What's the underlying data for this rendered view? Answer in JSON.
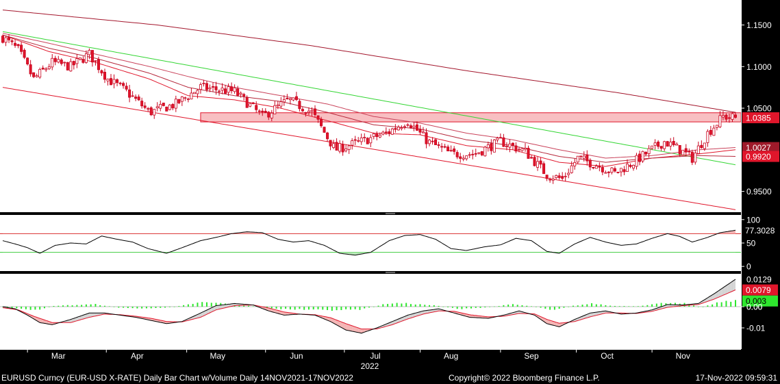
{
  "chart_data": [
    {
      "type": "candlestick",
      "panel": "price",
      "ylim": [
        0.925,
        1.18
      ],
      "yticks": [
        "1.1500",
        "1.1000",
        "1.0500",
        "0.9500"
      ],
      "yticks_values": [
        1.15,
        1.1,
        1.05,
        0.95
      ],
      "price_labels": [
        {
          "text": "1.0385",
          "value": 1.0385,
          "color": "#e0162b"
        },
        {
          "text": "1.0027",
          "value": 1.0027,
          "color": "#9e1a2a"
        },
        {
          "text": "0.9920",
          "value": 0.992,
          "color": "#e0162b"
        }
      ],
      "resistance_band": [
        1.0335,
        1.0445
      ],
      "candles_start": "2022-02-01",
      "close_anchors": [
        [
          0,
          1.135
        ],
        [
          10,
          1.12
        ],
        [
          20,
          1.085
        ],
        [
          32,
          1.105
        ],
        [
          44,
          1.1
        ],
        [
          56,
          1.115
        ],
        [
          68,
          1.085
        ],
        [
          80,
          1.07
        ],
        [
          95,
          1.045
        ],
        [
          112,
          1.055
        ],
        [
          128,
          1.075
        ],
        [
          150,
          1.07
        ],
        [
          168,
          1.04
        ],
        [
          185,
          1.06
        ],
        [
          200,
          1.045
        ],
        [
          215,
          1.0
        ],
        [
          232,
          1.01
        ],
        [
          248,
          1.02
        ],
        [
          262,
          1.035
        ],
        [
          275,
          1.01
        ],
        [
          290,
          0.995
        ],
        [
          305,
          0.995
        ],
        [
          322,
          1.01
        ],
        [
          338,
          0.998
        ],
        [
          352,
          0.97
        ],
        [
          362,
          0.965
        ],
        [
          372,
          0.99
        ],
        [
          384,
          0.982
        ],
        [
          396,
          0.972
        ],
        [
          408,
          0.985
        ],
        [
          418,
          0.998
        ],
        [
          428,
          1.01
        ],
        [
          438,
          1.0
        ],
        [
          446,
          0.99
        ],
        [
          456,
          1.02
        ],
        [
          466,
          1.04
        ],
        [
          474,
          1.0385
        ]
      ],
      "lines": [
        {
          "name": "upper-maroon",
          "color": "#a3162c",
          "points": [
            [
              0,
              1.168
            ],
            [
              100,
              1.15
            ],
            [
              200,
              1.125
            ],
            [
              300,
              1.095
            ],
            [
              400,
              1.068
            ],
            [
              474,
              1.045
            ]
          ]
        },
        {
          "name": "green-trendline",
          "color": "#33d633",
          "points": [
            [
              0,
              1.142
            ],
            [
              474,
              0.982
            ]
          ]
        },
        {
          "name": "lower-channel",
          "color": "#e0162b",
          "points": [
            [
              0,
              1.075
            ],
            [
              474,
              0.928
            ]
          ]
        },
        {
          "name": "ma-fast",
          "color": "#e0162b",
          "points": [
            [
              0,
              1.138
            ],
            [
              30,
              1.118
            ],
            [
              60,
              1.105
            ],
            [
              95,
              1.085
            ],
            [
              120,
              1.065
            ],
            [
              150,
              1.06
            ],
            [
              180,
              1.05
            ],
            [
              210,
              1.035
            ],
            [
              240,
              1.02
            ],
            [
              270,
              1.018
            ],
            [
              300,
              1.005
            ],
            [
              330,
              1.0
            ],
            [
              360,
              0.985
            ],
            [
              390,
              0.98
            ],
            [
              420,
              0.99
            ],
            [
              450,
              0.995
            ],
            [
              474,
              1.0
            ]
          ]
        },
        {
          "name": "ma-mid",
          "color": "#b5283b",
          "points": [
            [
              0,
              1.138
            ],
            [
              30,
              1.122
            ],
            [
              60,
              1.11
            ],
            [
              95,
              1.092
            ],
            [
              120,
              1.075
            ],
            [
              150,
              1.065
            ],
            [
              180,
              1.058
            ],
            [
              210,
              1.045
            ],
            [
              240,
              1.03
            ],
            [
              270,
              1.025
            ],
            [
              300,
              1.012
            ],
            [
              330,
              1.005
            ],
            [
              360,
              0.992
            ],
            [
              390,
              0.985
            ],
            [
              420,
              0.99
            ],
            [
              450,
              0.993
            ],
            [
              474,
              0.992
            ]
          ]
        },
        {
          "name": "ma-slow",
          "color": "#c9425a",
          "points": [
            [
              0,
              1.14
            ],
            [
              30,
              1.128
            ],
            [
              60,
              1.115
            ],
            [
              95,
              1.1
            ],
            [
              120,
              1.088
            ],
            [
              150,
              1.075
            ],
            [
              180,
              1.065
            ],
            [
              210,
              1.055
            ],
            [
              240,
              1.04
            ],
            [
              270,
              1.032
            ],
            [
              300,
              1.02
            ],
            [
              330,
              1.012
            ],
            [
              360,
              1.0
            ],
            [
              390,
              0.99
            ],
            [
              420,
              0.993
            ],
            [
              450,
              1.0
            ],
            [
              474,
              1.0027
            ]
          ]
        }
      ]
    },
    {
      "type": "line",
      "panel": "rsi",
      "ylim": [
        -10,
        110
      ],
      "yticks": [
        "100",
        "50",
        "0"
      ],
      "yticks_values": [
        100,
        50,
        0
      ],
      "value_label": {
        "text": "77.3028",
        "value": 77.3028
      },
      "overbought": 70,
      "oversold": 30,
      "series": [
        [
          0,
          55
        ],
        [
          8,
          48
        ],
        [
          16,
          40
        ],
        [
          24,
          28
        ],
        [
          34,
          45
        ],
        [
          44,
          50
        ],
        [
          54,
          48
        ],
        [
          64,
          65
        ],
        [
          74,
          58
        ],
        [
          84,
          52
        ],
        [
          94,
          38
        ],
        [
          106,
          28
        ],
        [
          116,
          40
        ],
        [
          128,
          55
        ],
        [
          138,
          62
        ],
        [
          148,
          70
        ],
        [
          158,
          74
        ],
        [
          168,
          72
        ],
        [
          178,
          58
        ],
        [
          188,
          52
        ],
        [
          198,
          55
        ],
        [
          208,
          45
        ],
        [
          218,
          28
        ],
        [
          228,
          24
        ],
        [
          238,
          30
        ],
        [
          250,
          55
        ],
        [
          260,
          66
        ],
        [
          270,
          68
        ],
        [
          280,
          58
        ],
        [
          290,
          38
        ],
        [
          300,
          34
        ],
        [
          312,
          42
        ],
        [
          322,
          46
        ],
        [
          332,
          60
        ],
        [
          342,
          55
        ],
        [
          352,
          32
        ],
        [
          360,
          28
        ],
        [
          370,
          48
        ],
        [
          380,
          62
        ],
        [
          390,
          52
        ],
        [
          400,
          45
        ],
        [
          410,
          48
        ],
        [
          420,
          60
        ],
        [
          430,
          70
        ],
        [
          438,
          64
        ],
        [
          446,
          52
        ],
        [
          456,
          62
        ],
        [
          464,
          72
        ],
        [
          474,
          77.3
        ]
      ]
    },
    {
      "type": "macd",
      "panel": "macd",
      "ylim": [
        -0.02,
        0.0155
      ],
      "yticks": [
        "0.0129",
        "0.0079",
        "0.003",
        "0.00",
        "-0.01"
      ],
      "yticks_values": [
        0.0129,
        0.0079,
        0.003,
        0.0,
        -0.01
      ],
      "macd_label": {
        "text": "0.0129",
        "value": 0.0129
      },
      "signal_label": {
        "text": "0.0079",
        "value": 0.0079
      },
      "histogram_label": {
        "text": "0.003",
        "value": 0.003
      },
      "macd": [
        [
          0,
          0.0
        ],
        [
          8,
          -0.001
        ],
        [
          16,
          -0.004
        ],
        [
          24,
          -0.0075
        ],
        [
          32,
          -0.0085
        ],
        [
          44,
          -0.006
        ],
        [
          56,
          -0.003
        ],
        [
          66,
          -0.003
        ],
        [
          76,
          -0.004
        ],
        [
          86,
          -0.005
        ],
        [
          96,
          -0.0065
        ],
        [
          106,
          -0.008
        ],
        [
          116,
          -0.007
        ],
        [
          128,
          -0.003
        ],
        [
          138,
          0.0005
        ],
        [
          150,
          0.0015
        ],
        [
          162,
          0.0008
        ],
        [
          172,
          -0.002
        ],
        [
          182,
          -0.004
        ],
        [
          192,
          -0.0035
        ],
        [
          202,
          -0.004
        ],
        [
          212,
          -0.007
        ],
        [
          222,
          -0.011
        ],
        [
          232,
          -0.0125
        ],
        [
          242,
          -0.01
        ],
        [
          252,
          -0.007
        ],
        [
          262,
          -0.004
        ],
        [
          272,
          -0.002
        ],
        [
          282,
          -0.001
        ],
        [
          292,
          -0.003
        ],
        [
          302,
          -0.005
        ],
        [
          314,
          -0.0055
        ],
        [
          324,
          -0.004
        ],
        [
          334,
          -0.002
        ],
        [
          344,
          -0.004
        ],
        [
          352,
          -0.008
        ],
        [
          360,
          -0.0095
        ],
        [
          370,
          -0.006
        ],
        [
          380,
          -0.003
        ],
        [
          390,
          -0.002
        ],
        [
          400,
          -0.0035
        ],
        [
          410,
          -0.003
        ],
        [
          420,
          -0.0015
        ],
        [
          430,
          0.001
        ],
        [
          440,
          0.0008
        ],
        [
          450,
          0.0015
        ],
        [
          460,
          0.006
        ],
        [
          474,
          0.0129
        ]
      ],
      "signal": [
        [
          0,
          -0.0005
        ],
        [
          10,
          -0.0015
        ],
        [
          20,
          -0.0045
        ],
        [
          32,
          -0.0075
        ],
        [
          44,
          -0.0075
        ],
        [
          56,
          -0.005
        ],
        [
          66,
          -0.0035
        ],
        [
          76,
          -0.0038
        ],
        [
          86,
          -0.0045
        ],
        [
          96,
          -0.0055
        ],
        [
          106,
          -0.007
        ],
        [
          116,
          -0.0072
        ],
        [
          128,
          -0.005
        ],
        [
          138,
          -0.0015
        ],
        [
          150,
          0.0005
        ],
        [
          162,
          0.0008
        ],
        [
          172,
          -0.0006
        ],
        [
          182,
          -0.0025
        ],
        [
          192,
          -0.0035
        ],
        [
          202,
          -0.0038
        ],
        [
          212,
          -0.0052
        ],
        [
          222,
          -0.008
        ],
        [
          232,
          -0.0105
        ],
        [
          242,
          -0.0105
        ],
        [
          252,
          -0.0085
        ],
        [
          262,
          -0.0058
        ],
        [
          272,
          -0.0035
        ],
        [
          282,
          -0.002
        ],
        [
          292,
          -0.0022
        ],
        [
          302,
          -0.0038
        ],
        [
          314,
          -0.0048
        ],
        [
          324,
          -0.0045
        ],
        [
          334,
          -0.0032
        ],
        [
          344,
          -0.0034
        ],
        [
          352,
          -0.006
        ],
        [
          360,
          -0.0078
        ],
        [
          370,
          -0.007
        ],
        [
          380,
          -0.0048
        ],
        [
          390,
          -0.003
        ],
        [
          400,
          -0.003
        ],
        [
          410,
          -0.0032
        ],
        [
          420,
          -0.0022
        ],
        [
          430,
          -0.0003
        ],
        [
          440,
          0.0005
        ],
        [
          450,
          0.001
        ],
        [
          460,
          0.0035
        ],
        [
          474,
          0.0079
        ]
      ],
      "volume_hist_peaks": [
        [
          0,
          0.0
        ],
        [
          20,
          -0.002
        ],
        [
          34,
          0.0005
        ],
        [
          60,
          0.0012
        ],
        [
          76,
          -0.0006
        ],
        [
          96,
          -0.001
        ],
        [
          112,
          0.0
        ],
        [
          128,
          0.0022
        ],
        [
          140,
          0.0018
        ],
        [
          160,
          0.0004
        ],
        [
          180,
          -0.0012
        ],
        [
          212,
          -0.0018
        ],
        [
          232,
          -0.0014
        ],
        [
          250,
          0.0018
        ],
        [
          262,
          0.0016
        ],
        [
          280,
          0.0006
        ],
        [
          296,
          -0.0012
        ],
        [
          310,
          -0.0006
        ],
        [
          330,
          0.0012
        ],
        [
          342,
          0.0002
        ],
        [
          356,
          -0.0016
        ],
        [
          370,
          0.0006
        ],
        [
          382,
          0.0016
        ],
        [
          394,
          0.0004
        ],
        [
          410,
          0.0002
        ],
        [
          420,
          0.0012
        ],
        [
          432,
          0.0022
        ],
        [
          442,
          0.0016
        ],
        [
          452,
          -0.0004
        ],
        [
          462,
          0.002
        ],
        [
          474,
          0.003
        ]
      ]
    }
  ],
  "x_axis": {
    "months": [
      {
        "label": "Mar",
        "idx": 36
      },
      {
        "label": "Apr",
        "idx": 87
      },
      {
        "label": "May",
        "idx": 139
      },
      {
        "label": "Jun",
        "idx": 190
      },
      {
        "label": "Jul",
        "idx": 241
      },
      {
        "label": "Aug",
        "idx": 290
      },
      {
        "label": "Sep",
        "idx": 342
      },
      {
        "label": "Oct",
        "idx": 391
      },
      {
        "label": "Nov",
        "idx": 440
      }
    ],
    "year": "2022"
  },
  "footer": {
    "left": "EURUSD Curncy (EUR-USD X-RATE) Daily Bar Chart w/Volume  Daily 14NOV2021-17NOV2022",
    "center": "Copyright© 2022 Bloomberg Finance L.P.",
    "right": "17-Nov-2022 09:59:31"
  },
  "colors": {
    "up": "#ffffff",
    "down": "#e0162b",
    "hist_up": "#2ee62e",
    "hist_down": "#f4b3b3"
  }
}
